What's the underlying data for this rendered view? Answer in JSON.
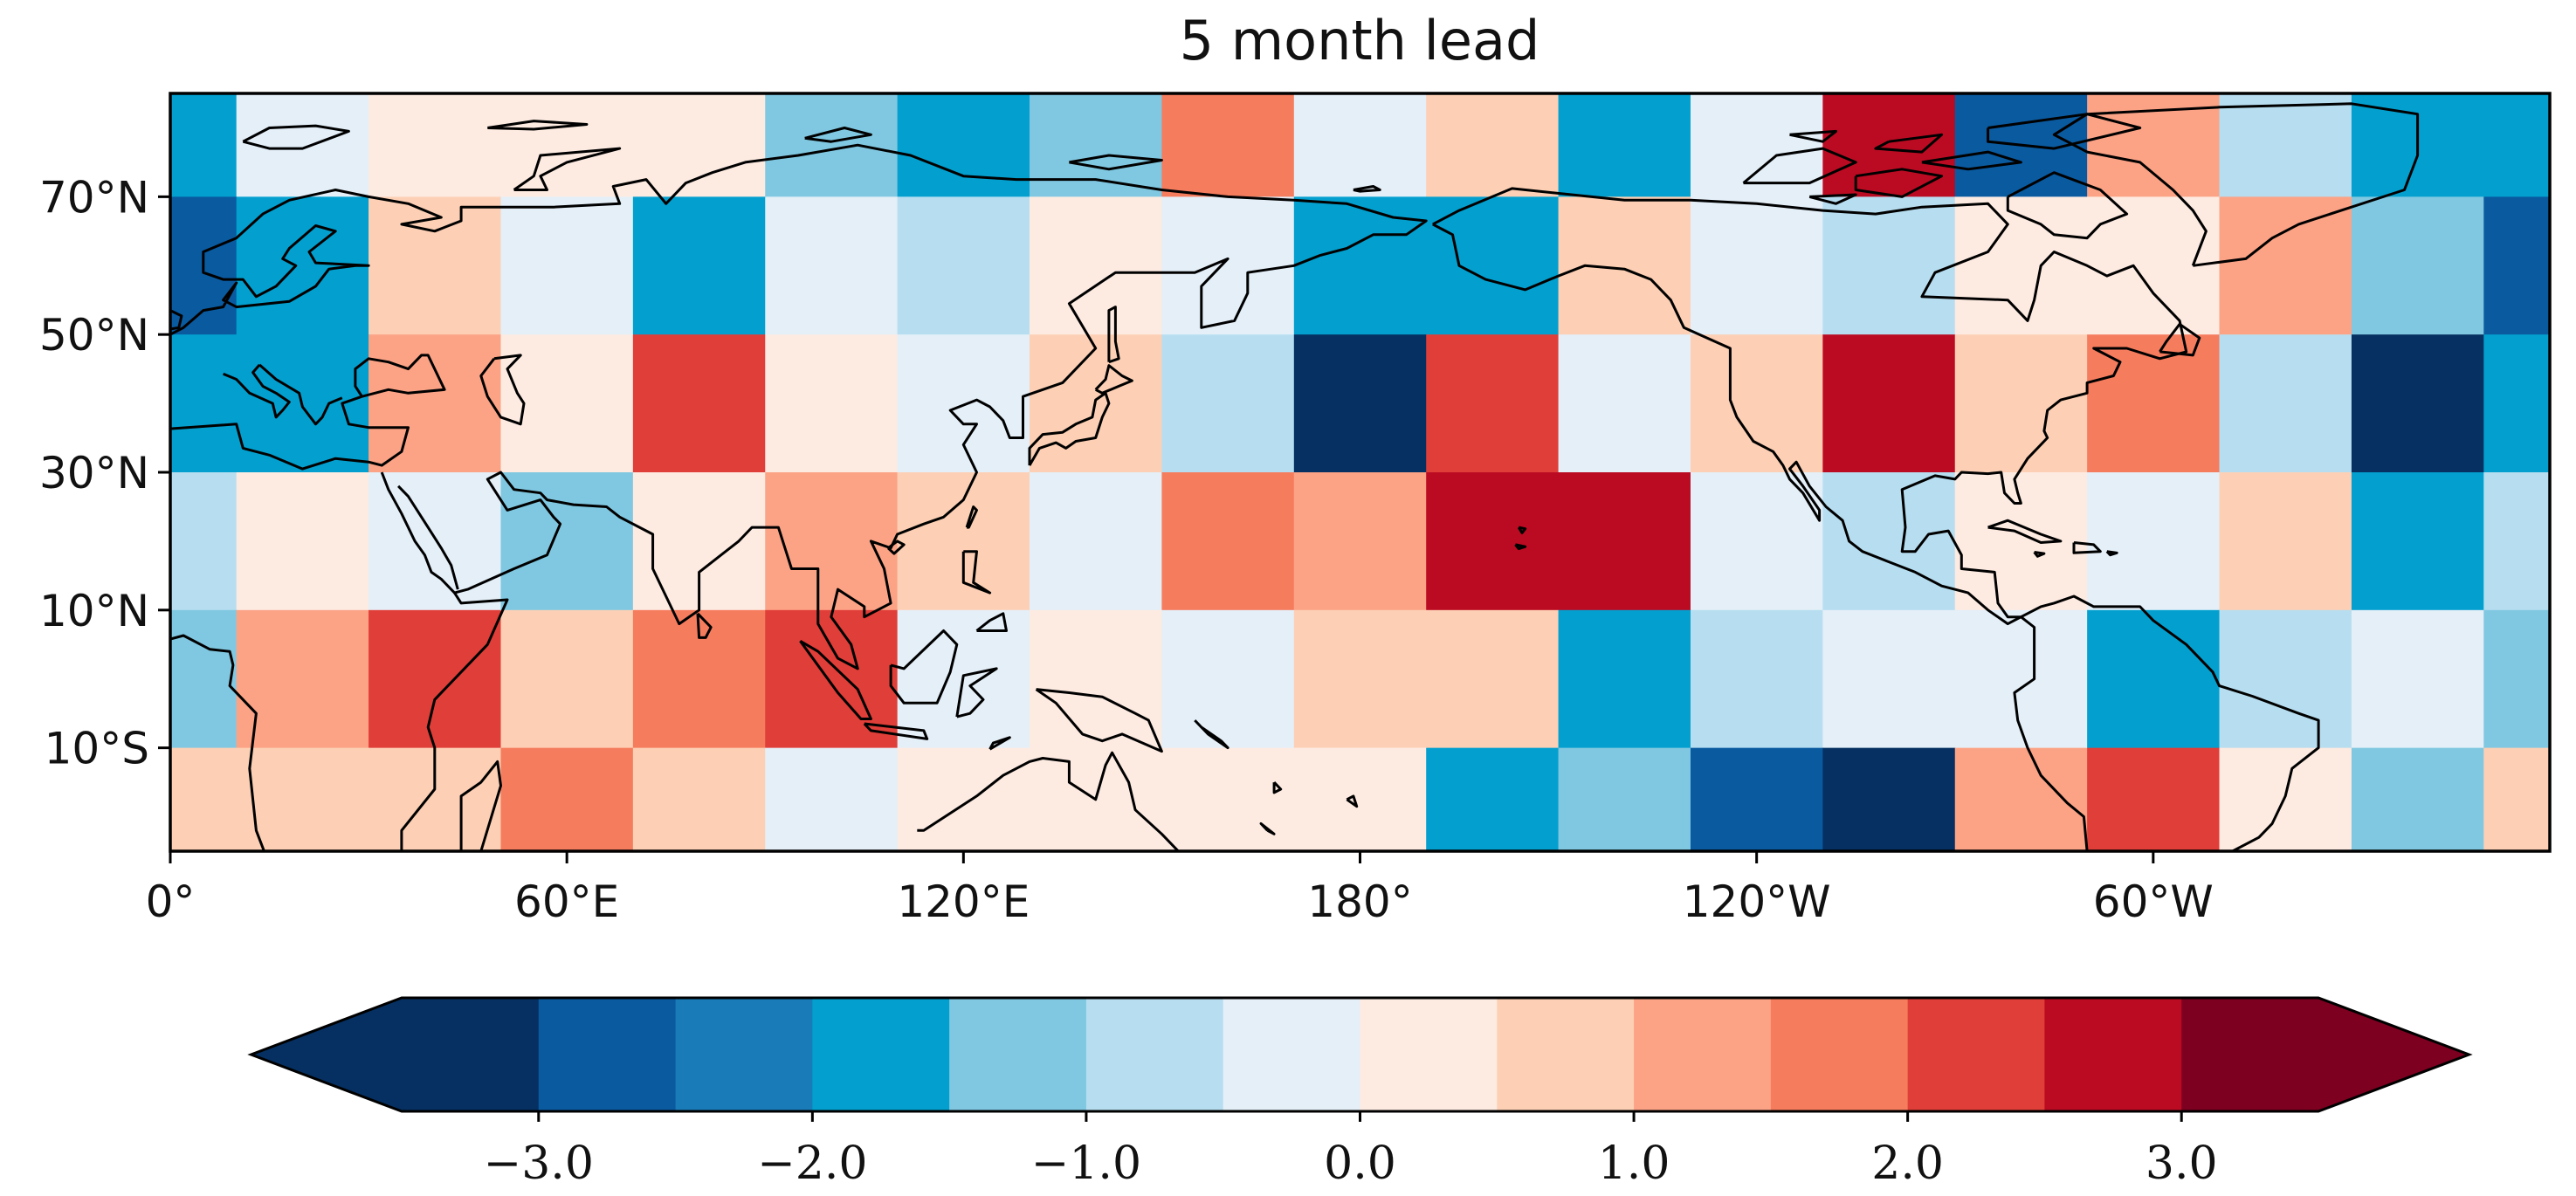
{
  "title": "5 month lead",
  "map": {
    "projection": "PlateCarree",
    "lon_range": [
      0,
      360
    ],
    "lat_range": [
      -25,
      85
    ],
    "cell_size_deg": 20,
    "cell_columns_lon_start": [
      -10,
      10,
      30,
      50,
      70,
      90,
      110,
      130,
      150,
      170,
      190,
      210,
      230,
      250,
      270,
      290,
      310,
      330,
      350
    ],
    "cell_rows_lat": [
      "70-90",
      "50-70",
      "30-50",
      "10-30",
      "-10-10",
      "-30--10"
    ],
    "grid_values": [
      [
        -2.0,
        -0.3,
        0.3,
        0.3,
        0.3,
        -1.2,
        -1.8,
        -1.2,
        1.8,
        -0.3,
        0.8,
        -2.0,
        -0.3,
        2.8,
        -2.6,
        1.3,
        -0.8,
        -1.8,
        -2.0
      ],
      [
        -2.6,
        -2.0,
        0.8,
        -0.3,
        -1.8,
        -0.3,
        -0.8,
        0.3,
        -0.3,
        -1.8,
        -2.0,
        0.8,
        -0.3,
        -0.8,
        0.3,
        0.3,
        1.3,
        -1.2,
        -2.6
      ],
      [
        -1.8,
        -1.8,
        1.3,
        0.3,
        2.3,
        0.3,
        -0.3,
        0.8,
        -0.8,
        -3.2,
        2.3,
        -0.3,
        0.8,
        2.8,
        0.8,
        1.8,
        -0.8,
        -3.2,
        -1.8
      ],
      [
        -0.8,
        0.3,
        -0.3,
        -1.2,
        0.3,
        1.3,
        0.8,
        -0.3,
        1.8,
        1.3,
        2.8,
        2.8,
        -0.3,
        -0.8,
        0.3,
        -0.3,
        0.8,
        -2.0,
        -0.8
      ],
      [
        -1.2,
        1.3,
        2.3,
        0.8,
        1.8,
        2.3,
        -0.3,
        0.3,
        -0.3,
        0.8,
        0.8,
        -1.8,
        -0.8,
        -0.3,
        -0.3,
        -1.8,
        -0.8,
        -0.3,
        -1.2
      ],
      [
        0.8,
        0.8,
        0.8,
        1.8,
        0.8,
        -0.3,
        0.3,
        0.3,
        0.3,
        0.3,
        -1.8,
        -1.2,
        -2.6,
        -3.2,
        1.3,
        2.3,
        0.3,
        -1.2,
        0.8
      ]
    ],
    "lon_ticks": [
      {
        "lon": 0,
        "label": "0°"
      },
      {
        "lon": 60,
        "label": "60°E"
      },
      {
        "lon": 120,
        "label": "120°E"
      },
      {
        "lon": 180,
        "label": "180°"
      },
      {
        "lon": 240,
        "label": "120°W"
      },
      {
        "lon": 300,
        "label": "60°W"
      }
    ],
    "lat_ticks": [
      {
        "lat": 70,
        "label": "70°N"
      },
      {
        "lat": 50,
        "label": "50°N"
      },
      {
        "lat": 30,
        "label": "30°N"
      },
      {
        "lat": 10,
        "label": "10°N"
      },
      {
        "lat": -10,
        "label": "10°S"
      }
    ]
  },
  "colorbar": {
    "orientation": "horizontal",
    "extend": "both",
    "vmin": -3.5,
    "vmax": 3.5,
    "boundaries": [
      -3.5,
      -3.0,
      -2.5,
      -2.0,
      -1.5,
      -1.0,
      -0.5,
      0.0,
      0.5,
      1.0,
      1.5,
      2.0,
      2.5,
      3.0,
      3.5
    ],
    "colors": [
      "#053061",
      "#0a5aa0",
      "#1a7bb9",
      "#03a0cf",
      "#80c8e1",
      "#b7def0",
      "#e4eff8",
      "#fdebe2",
      "#fdd0b5",
      "#fca386",
      "#f67c5e",
      "#e03e38",
      "#bb0b22",
      "#7d0020"
    ],
    "ticks": [
      {
        "value": -3.0,
        "label": "−3.0"
      },
      {
        "value": -2.0,
        "label": "−2.0"
      },
      {
        "value": -1.0,
        "label": "−1.0"
      },
      {
        "value": 0.0,
        "label": "0.0"
      },
      {
        "value": 1.0,
        "label": "1.0"
      },
      {
        "value": 2.0,
        "label": "2.0"
      },
      {
        "value": 3.0,
        "label": "3.0"
      }
    ]
  }
}
